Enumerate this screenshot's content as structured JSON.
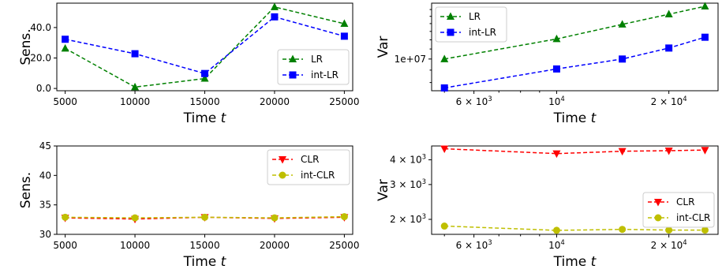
{
  "chart_data": [
    {
      "type": "line",
      "xlabel": "Time",
      "xlabel_var": "t",
      "ylabel": "Sens.",
      "xscale": "linear",
      "yscale": "linear",
      "x": [
        5000,
        10000,
        15000,
        20000,
        25000
      ],
      "xticks": [
        "5000",
        "10000",
        "15000",
        "20000",
        "25000"
      ],
      "yticks": [
        "0.0",
        "20.0",
        "40.0"
      ],
      "ytick_values": [
        0,
        20,
        40
      ],
      "ylim": [
        -1.5,
        56
      ],
      "xlim": [
        4400,
        25600
      ],
      "legend": "center-right",
      "series": [
        {
          "name": "LR",
          "color": "#008000",
          "marker": "triangle-up",
          "values": [
            26.3,
            0.9,
            6.5,
            53.5,
            42.5
          ]
        },
        {
          "name": "int-LR",
          "color": "#0000ff",
          "marker": "square",
          "values": [
            32.3,
            22.8,
            9.8,
            47.0,
            34.3
          ]
        }
      ]
    },
    {
      "type": "line",
      "xlabel": "Time",
      "xlabel_var": "t",
      "ylabel": "Var",
      "xscale": "log",
      "yscale": "log",
      "x": [
        5000,
        10000,
        15000,
        20000,
        25000
      ],
      "xticks": [
        "6 × 10",
        "10",
        "2 × 10"
      ],
      "xtick_exps": [
        "3",
        "4",
        "4"
      ],
      "xtick_values": [
        6000,
        10000,
        20000
      ],
      "yticks": [
        "1e+07"
      ],
      "ytick_values": [
        10000000
      ],
      "ylim": [
        7400000,
        17000000
      ],
      "xlim": [
        4620,
        27100
      ],
      "legend": "top-left",
      "series": [
        {
          "name": "LR",
          "color": "#008000",
          "marker": "triangle-up",
          "values": [
            10000000,
            12100000,
            13900000,
            15300000,
            16500000
          ]
        },
        {
          "name": "int-LR",
          "color": "#0000ff",
          "marker": "square",
          "values": [
            7600000,
            9100000,
            10000000,
            11100000,
            12300000
          ]
        }
      ]
    },
    {
      "type": "line",
      "xlabel": "Time",
      "xlabel_var": "t",
      "ylabel": "Sens.",
      "xscale": "linear",
      "yscale": "linear",
      "x": [
        5000,
        10000,
        15000,
        20000,
        25000
      ],
      "xticks": [
        "5000",
        "10000",
        "15000",
        "20000",
        "25000"
      ],
      "yticks": [
        "30",
        "35",
        "40",
        "45"
      ],
      "ytick_values": [
        30,
        35,
        40,
        45
      ],
      "ylim": [
        30,
        45
      ],
      "xlim": [
        4400,
        25600
      ],
      "legend": "top-right",
      "series": [
        {
          "name": "CLR",
          "color": "#ff0000",
          "marker": "triangle-down",
          "values": [
            32.8,
            32.6,
            32.9,
            32.7,
            32.9
          ]
        },
        {
          "name": "int-CLR",
          "color": "#bfbf00",
          "marker": "circle",
          "values": [
            32.9,
            32.8,
            32.9,
            32.8,
            33.0
          ]
        }
      ]
    },
    {
      "type": "line",
      "xlabel": "Time",
      "xlabel_var": "t",
      "ylabel": "Var",
      "xscale": "log",
      "yscale": "log",
      "x": [
        5000,
        10000,
        15000,
        20000,
        25000
      ],
      "xticks": [
        "6 × 10",
        "10",
        "2 × 10"
      ],
      "xtick_exps": [
        "3",
        "4",
        "4"
      ],
      "xtick_values": [
        6000,
        10000,
        20000
      ],
      "yticks": [
        "2 × 10",
        "3 × 10",
        "4 × 10"
      ],
      "ytick_exps": [
        "3",
        "3",
        "3"
      ],
      "ytick_values": [
        2000,
        3000,
        4000
      ],
      "ylim": [
        1680,
        4700
      ],
      "xlim": [
        4620,
        27100
      ],
      "legend": "center-right",
      "series": [
        {
          "name": "CLR",
          "color": "#ff0000",
          "marker": "triangle-down",
          "values": [
            4550,
            4300,
            4420,
            4450,
            4480
          ]
        },
        {
          "name": "int-CLR",
          "color": "#bfbf00",
          "marker": "circle",
          "values": [
            1850,
            1760,
            1780,
            1765,
            1765
          ]
        }
      ]
    }
  ]
}
